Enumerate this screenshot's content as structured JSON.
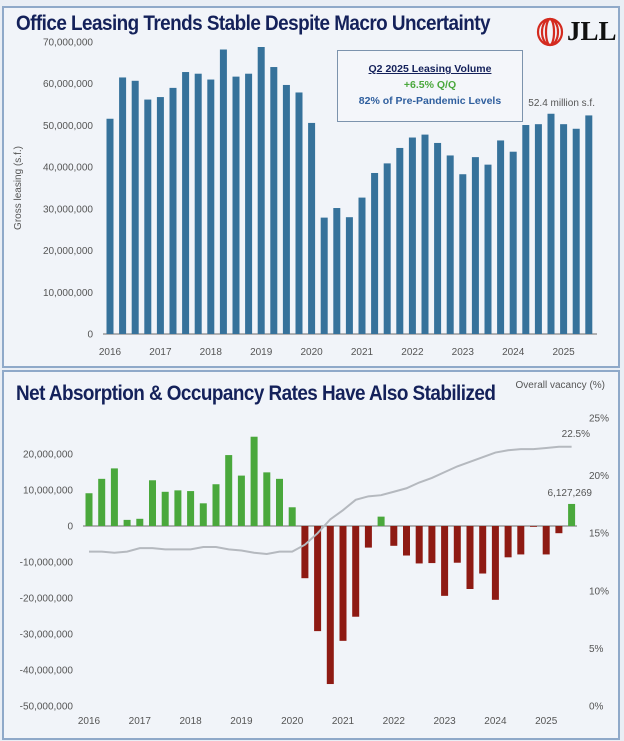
{
  "colors": {
    "bar": "#36729b",
    "positive": "#4aa83c",
    "negative": "#8e1a13",
    "line": "#b5b9bf",
    "title": "#14215a",
    "callout_green": "#4aa83c",
    "callout_blue": "#2f5f9e"
  },
  "logo": {
    "text": "JLL",
    "icon": "jll-rings-logo-icon"
  },
  "callout": {
    "heading": "Q2 2025 Leasing Volume",
    "change": "+6.5% Q/Q",
    "level": "82% of Pre-Pandemic Levels"
  },
  "chart_data": [
    {
      "type": "bar",
      "title": "Office Leasing Trends Stable Despite Macro Uncertainty",
      "ylabel": "Gross leasing (s.f.)",
      "ylim": [
        0,
        70000000
      ],
      "yticks": [
        "0",
        "10,000,000",
        "20,000,000",
        "30,000,000",
        "40,000,000",
        "50,000,000",
        "60,000,000",
        "70,000,000"
      ],
      "xtick_labels": [
        "2016",
        "2017",
        "2018",
        "2019",
        "2020",
        "2021",
        "2022",
        "2023",
        "2024",
        "2025"
      ],
      "annotation": "52.4 million s.f.",
      "values": [
        51600000,
        61500000,
        60700000,
        56200000,
        56800000,
        59000000,
        62800000,
        62400000,
        61000000,
        68200000,
        61700000,
        62400000,
        68800000,
        64000000,
        59700000,
        57900000,
        50600000,
        27900000,
        30200000,
        28000000,
        32700000,
        38600000,
        40900000,
        44600000,
        47100000,
        47800000,
        45800000,
        42800000,
        38300000,
        42400000,
        40600000,
        46400000,
        43700000,
        50100000,
        50300000,
        52800000,
        50300000,
        49200000,
        52400000
      ]
    },
    {
      "type": "bar+line",
      "title": "Net Absorption & Occupancy Rates Have Also Stabilized",
      "ylim": [
        -50000000,
        25000000
      ],
      "yticks": [
        "-50,000,000",
        "-40,000,000",
        "-30,000,000",
        "-20,000,000",
        "-10,000,000",
        "0",
        "10,000,000",
        "20,000,000"
      ],
      "y2label": "Overall vacancy (%)",
      "y2lim": [
        0,
        25
      ],
      "y2ticks": [
        "0%",
        "5%",
        "10%",
        "15%",
        "20%",
        "25%"
      ],
      "xtick_labels": [
        "2016",
        "2017",
        "2018",
        "2019",
        "2020",
        "2021",
        "2022",
        "2023",
        "2024",
        "2025"
      ],
      "bar_annotation": "6,127,269",
      "line_annotation": "22.5%",
      "series": [
        {
          "kind": "bar",
          "values": [
            9100000,
            13100000,
            16000000,
            1700000,
            2000000,
            12700000,
            9500000,
            9900000,
            9700000,
            6300000,
            11600000,
            19700000,
            14000000,
            24800000,
            14900000,
            13100000,
            5200000,
            -14500000,
            -29200000,
            -43900000,
            -31900000,
            -25200000,
            -6000000,
            2600000,
            -5500000,
            -8200000,
            -10400000,
            -10300000,
            -19400000,
            -10200000,
            -17500000,
            -13200000,
            -20500000,
            -8700000,
            -7900000,
            -200000,
            -7900000,
            -2000000,
            6127269
          ]
        },
        {
          "kind": "line",
          "values": [
            13.4,
            13.4,
            13.3,
            13.4,
            13.7,
            13.7,
            13.6,
            13.6,
            13.6,
            13.8,
            13.8,
            13.6,
            13.5,
            13.3,
            13.2,
            13.4,
            13.4,
            14.0,
            15.0,
            16.2,
            17.0,
            17.9,
            18.2,
            18.3,
            18.6,
            18.9,
            19.4,
            19.8,
            20.3,
            20.8,
            21.2,
            21.6,
            22.0,
            22.2,
            22.3,
            22.3,
            22.4,
            22.5,
            22.5
          ]
        }
      ]
    }
  ]
}
